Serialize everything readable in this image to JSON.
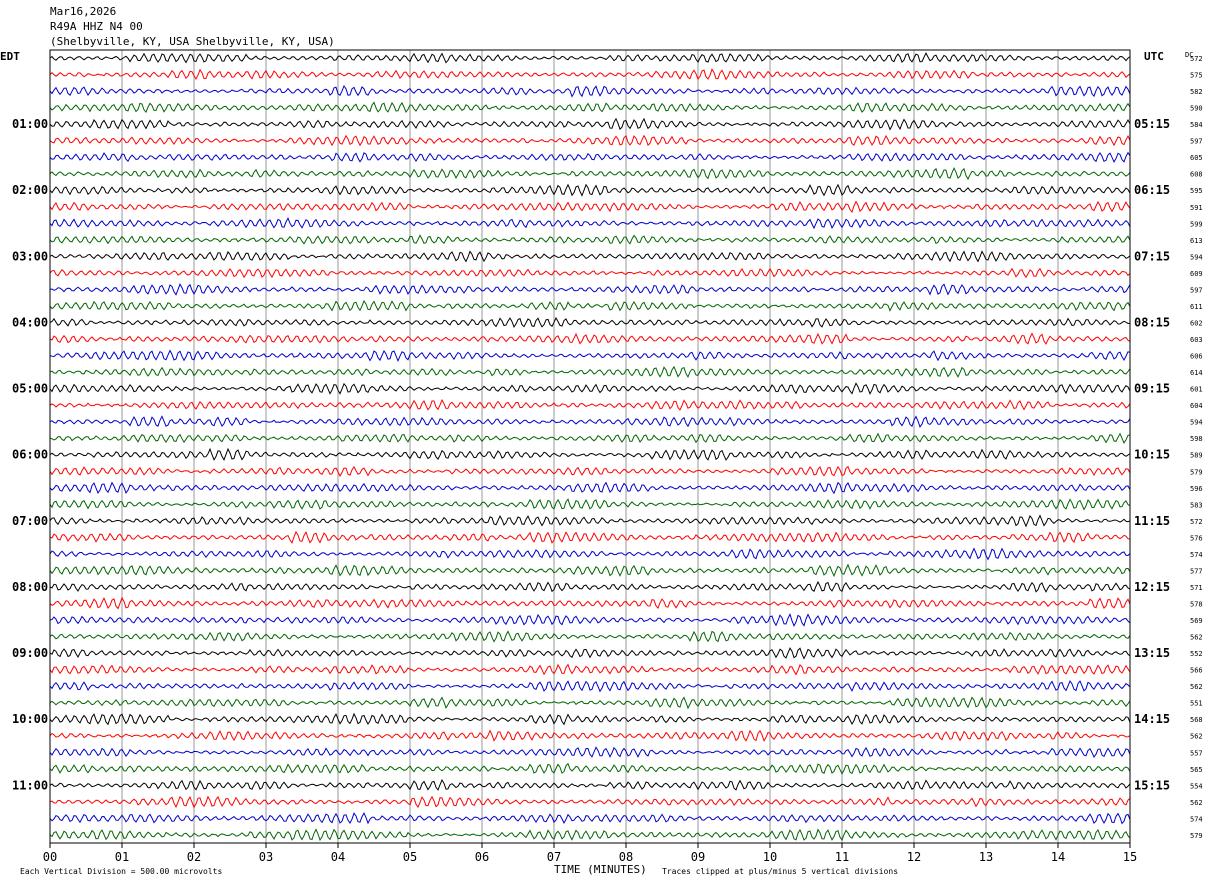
{
  "header": {
    "date": "Mar16,2026",
    "station": "R49A HHZ N4 00",
    "location": "(Shelbyville, KY, USA Shelbyville, KY, USA)"
  },
  "left_tz": "EDT",
  "right_tz": "UTC",
  "dc_label": "DC",
  "footer": {
    "scale_note": "Each Vertical Division =  500.00 microvolts",
    "xlabel": "TIME (MINUTES)",
    "clip_note": "Traces clipped at plus/minus 5 vertical divisions"
  },
  "colors": {
    "trace_cycle": [
      "#000000",
      "#ff0000",
      "#0000cc",
      "#006600"
    ],
    "grid": "#808080"
  },
  "chart_data": {
    "type": "line",
    "x_range": [
      0,
      15
    ],
    "x_ticks": [
      "00",
      "01",
      "02",
      "03",
      "04",
      "05",
      "06",
      "07",
      "08",
      "09",
      "10",
      "11",
      "12",
      "13",
      "14",
      "15"
    ],
    "trace_minutes_per_line": 15,
    "rows_per_hour": 4,
    "left_hour_labels": [
      "01:00",
      "02:00",
      "03:00",
      "04:00",
      "05:00",
      "06:00",
      "07:00",
      "08:00",
      "09:00",
      "10:00",
      "11:00"
    ],
    "right_hour_labels": [
      "05:15",
      "06:15",
      "07:15",
      "08:15",
      "09:15",
      "10:15",
      "11:15",
      "12:15",
      "13:15",
      "14:15",
      "15:15"
    ],
    "dc_offsets": [
      "572",
      "575",
      "582",
      "590",
      "584",
      "597",
      "605",
      "608",
      "595",
      "591",
      "599",
      "613",
      "594",
      "609",
      "597",
      "611",
      "602",
      "603",
      "606",
      "614",
      "601",
      "604",
      "594",
      "598",
      "589",
      "579",
      "596",
      "583",
      "572",
      "576",
      "574",
      "577",
      "571",
      "578",
      "569",
      "562",
      "552",
      "566",
      "562",
      "551",
      "568",
      "562",
      "557",
      "565",
      "554",
      "562",
      "574",
      "579"
    ]
  }
}
